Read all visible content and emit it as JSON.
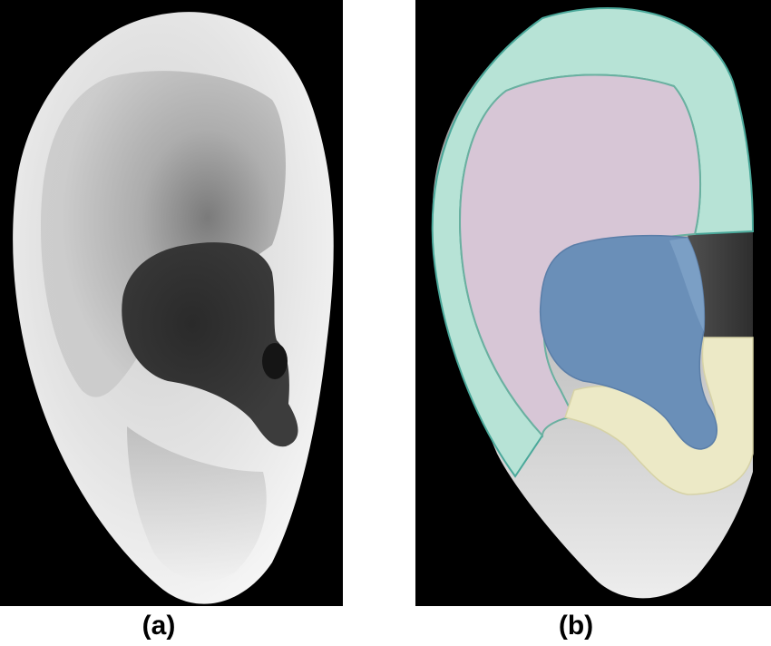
{
  "panels": [
    {
      "id": "a",
      "caption": "(a)",
      "content": "grayscale-ear-depth-render"
    },
    {
      "id": "b",
      "caption": "(b)",
      "content": "ear-segmented-regions"
    }
  ],
  "colors": {
    "background": "#000000",
    "region_helix": "#b7e3d6",
    "region_antihelix": "#d7c6d6",
    "region_concha": "#6a8fb8",
    "region_antitragus": "#ece9c6"
  }
}
